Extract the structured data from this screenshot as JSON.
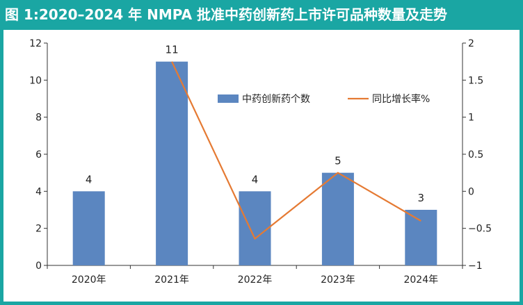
{
  "title": "图 1:2020–2024 年 NMPA 批准中药创新药上市许可品种数量及走势",
  "colors": {
    "frame": "#1aa6a3",
    "bar": "#5b86c0",
    "line": "#e57a33",
    "axis": "#333333"
  },
  "chart_data": {
    "type": "bar",
    "categories": [
      "2020年",
      "2021年",
      "2022年",
      "2023年",
      "2024年"
    ],
    "series": [
      {
        "name": "中药创新药个数",
        "type": "bar",
        "axis": "left",
        "values": [
          4,
          11,
          4,
          5,
          3
        ]
      },
      {
        "name": "同比增长率%",
        "type": "line",
        "axis": "right",
        "values": [
          null,
          1.75,
          -0.64,
          0.25,
          -0.4
        ]
      }
    ],
    "data_labels": [
      "4",
      "11",
      "4",
      "5",
      "3"
    ],
    "left_axis": {
      "range": [
        0,
        12
      ],
      "ticks": [
        0,
        2,
        4,
        6,
        8,
        10,
        12
      ]
    },
    "right_axis": {
      "range": [
        -1,
        2
      ],
      "ticks": [
        "2",
        "1.5",
        "1",
        "0.5",
        "0",
        "−0.5",
        "−1"
      ]
    },
    "legend": "top-right",
    "grid": false
  }
}
